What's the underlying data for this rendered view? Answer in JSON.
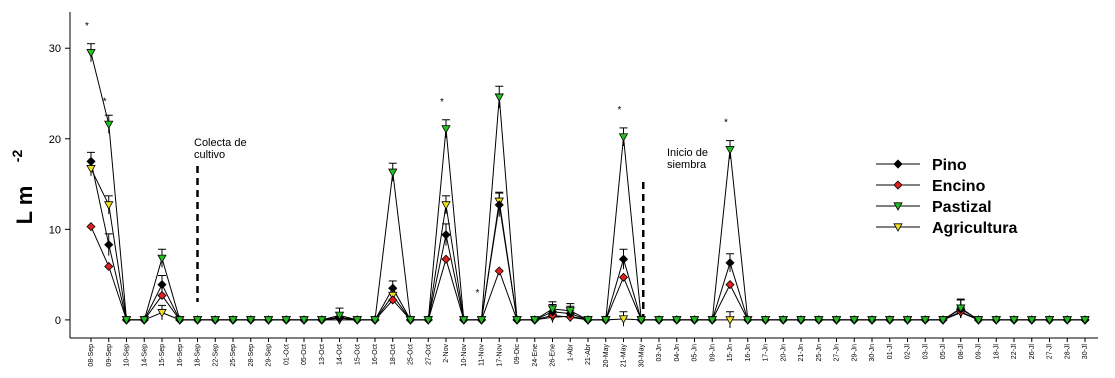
{
  "chart_data": {
    "type": "line",
    "title": "",
    "xlabel": "",
    "ylabel": "L m",
    "ylabel_superscript": "-2",
    "ylim": [
      -2,
      34
    ],
    "yticks": [
      0,
      10,
      20,
      30
    ],
    "grid": false,
    "legend_position": "right",
    "categories": [
      "08-Sep",
      "09-Sep",
      "10-Sep",
      "14-Sep",
      "15-Sep",
      "16-Sep",
      "18-Sep",
      "22-Sep",
      "25-Sep",
      "28-Sep",
      "29-Sep",
      "01-Oct",
      "05-Oct",
      "13-Oct",
      "14-Oct",
      "15-Oct",
      "16-Oct",
      "18-Oct",
      "25-Oct",
      "27-Oct",
      "2-Nov",
      "10-Nov",
      "11-Nov",
      "17-Nov",
      "09-Dic",
      "24-Ene",
      "26-Ene",
      "1-Abr",
      "21-Abr",
      "20-May",
      "21-May",
      "30-May",
      "03-Jn",
      "04-Jn",
      "05-Jn",
      "09-Jn",
      "15-Jn",
      "16-Jn",
      "17-Jn",
      "20-Jn",
      "21-Jn",
      "25-Jn",
      "27-Jn",
      "29-Jn",
      "30-Jn",
      "01-Jl",
      "02-Jl",
      "03-Jl",
      "05-Jl",
      "08-Jl",
      "09-Jl",
      "18-Jl",
      "22-Jl",
      "26-Jl",
      "27-Jl",
      "28-Jl",
      "30-Jl"
    ],
    "series": [
      {
        "name": "Pino",
        "color": "#000000",
        "marker": "diamond",
        "values": [
          17.5,
          8.3,
          0,
          0,
          3.9,
          0,
          0,
          0,
          0,
          0,
          0,
          0,
          0,
          0,
          0.3,
          0,
          0,
          3.5,
          0,
          0,
          9.4,
          0,
          0,
          12.7,
          0,
          0,
          0.9,
          0.7,
          0,
          0,
          6.7,
          0,
          0,
          0,
          0,
          0,
          6.3,
          0,
          0,
          0,
          0,
          0,
          0,
          0,
          0,
          0,
          0,
          0,
          0,
          1.2,
          0,
          0,
          0,
          0,
          0,
          0,
          0
        ]
      },
      {
        "name": "Encino",
        "color": "#e02020",
        "marker": "diamond",
        "values": [
          10.3,
          5.9,
          0,
          0,
          2.7,
          0,
          0,
          0,
          0,
          0,
          0,
          0,
          0,
          0,
          0.2,
          0,
          0,
          2.2,
          0,
          0,
          6.7,
          0,
          0,
          5.4,
          0,
          0,
          0.5,
          0.3,
          0,
          0,
          4.7,
          0,
          0,
          0,
          0,
          0,
          3.9,
          0,
          0,
          0,
          0,
          0,
          0,
          0,
          0,
          0,
          0,
          0,
          0,
          0.9,
          0,
          0,
          0,
          0,
          0,
          0,
          0
        ]
      },
      {
        "name": "Pastizal",
        "color": "#22c020",
        "marker": "triangle-down",
        "values": [
          29.5,
          21.6,
          0,
          0,
          6.8,
          0,
          0,
          0,
          0,
          0,
          0,
          0,
          0,
          0,
          0.5,
          0,
          0,
          16.3,
          0,
          0,
          21.1,
          0,
          0,
          24.6,
          0,
          0,
          1.2,
          1.0,
          0,
          0,
          20.2,
          0,
          0,
          0,
          0,
          0,
          18.8,
          0,
          0,
          0,
          0,
          0,
          0,
          0,
          0,
          0,
          0,
          0,
          0,
          1.3,
          0,
          0,
          0,
          0,
          0,
          0,
          0
        ]
      },
      {
        "name": "Agricultura",
        "color": "#f0e020",
        "marker": "triangle-down",
        "values": [
          16.7,
          12.7,
          0,
          0,
          0.8,
          0,
          0,
          0,
          0,
          0,
          0,
          0,
          0,
          0,
          0,
          0,
          0,
          2.7,
          0,
          0,
          12.7,
          0,
          0,
          13.1,
          0,
          0,
          0.3,
          0.4,
          0,
          0,
          0.1,
          0,
          0,
          0,
          0,
          0,
          0,
          0,
          0,
          0,
          0,
          0,
          0,
          0,
          0,
          0,
          0,
          0,
          0,
          0.8,
          0,
          0,
          0,
          0,
          0,
          0,
          0
        ]
      }
    ],
    "error_bars": [
      {
        "series": "Pino",
        "values": [
          1.0,
          1.2,
          0,
          0,
          1.0,
          0,
          0,
          0,
          0,
          0,
          0,
          0,
          0,
          0,
          0.5,
          0,
          0,
          0.8,
          0,
          0,
          1.2,
          0,
          0,
          1.3,
          0,
          0,
          0.8,
          0.8,
          0,
          0,
          1.1,
          0,
          0,
          0,
          0,
          0,
          1.0,
          0,
          0,
          0,
          0,
          0,
          0,
          0,
          0,
          0,
          0,
          0,
          0,
          1.0,
          0,
          0,
          0,
          0,
          0,
          0,
          0
        ]
      },
      {
        "series": "Pastizal",
        "values": [
          1.0,
          1.0,
          0,
          0,
          1.0,
          0,
          0,
          0,
          0,
          0,
          0,
          0,
          0,
          0,
          0.8,
          0,
          0,
          1.0,
          0,
          0,
          1.0,
          0,
          0,
          1.2,
          0,
          0,
          0.8,
          0.8,
          0,
          0,
          1.0,
          0,
          0,
          0,
          0,
          0,
          1.0,
          0,
          0,
          0,
          0,
          0,
          0,
          0,
          0,
          0,
          0,
          0,
          0,
          1.0,
          0,
          0,
          0,
          0,
          0,
          0,
          0
        ]
      },
      {
        "series": "Agricultura",
        "values": [
          0.8,
          1.0,
          0,
          0,
          0.8,
          0,
          0,
          0,
          0,
          0,
          0,
          0,
          0,
          0,
          0,
          0,
          0,
          0.8,
          0,
          0,
          1.0,
          0,
          0,
          1.0,
          0,
          0,
          0.6,
          0.6,
          0,
          0,
          0.8,
          0,
          0,
          0,
          0,
          0,
          0.9,
          0,
          0,
          0,
          0,
          0,
          0,
          0,
          0,
          0,
          0,
          0,
          0,
          0.6,
          0,
          0,
          0,
          0,
          0,
          0,
          0
        ]
      }
    ],
    "significance_marks": {
      "symbol": "*",
      "categories": [
        "08-Sep",
        "09-Sep",
        "2-Nov",
        "11-Nov",
        "21-May",
        "15-Jn"
      ]
    },
    "annotations": [
      {
        "text_lines": [
          "Colecta de",
          "cultivo"
        ],
        "marker_category": "18-Sep"
      },
      {
        "text_lines": [
          "Inicio de",
          "siembra"
        ],
        "marker_category": "30-May"
      }
    ]
  }
}
